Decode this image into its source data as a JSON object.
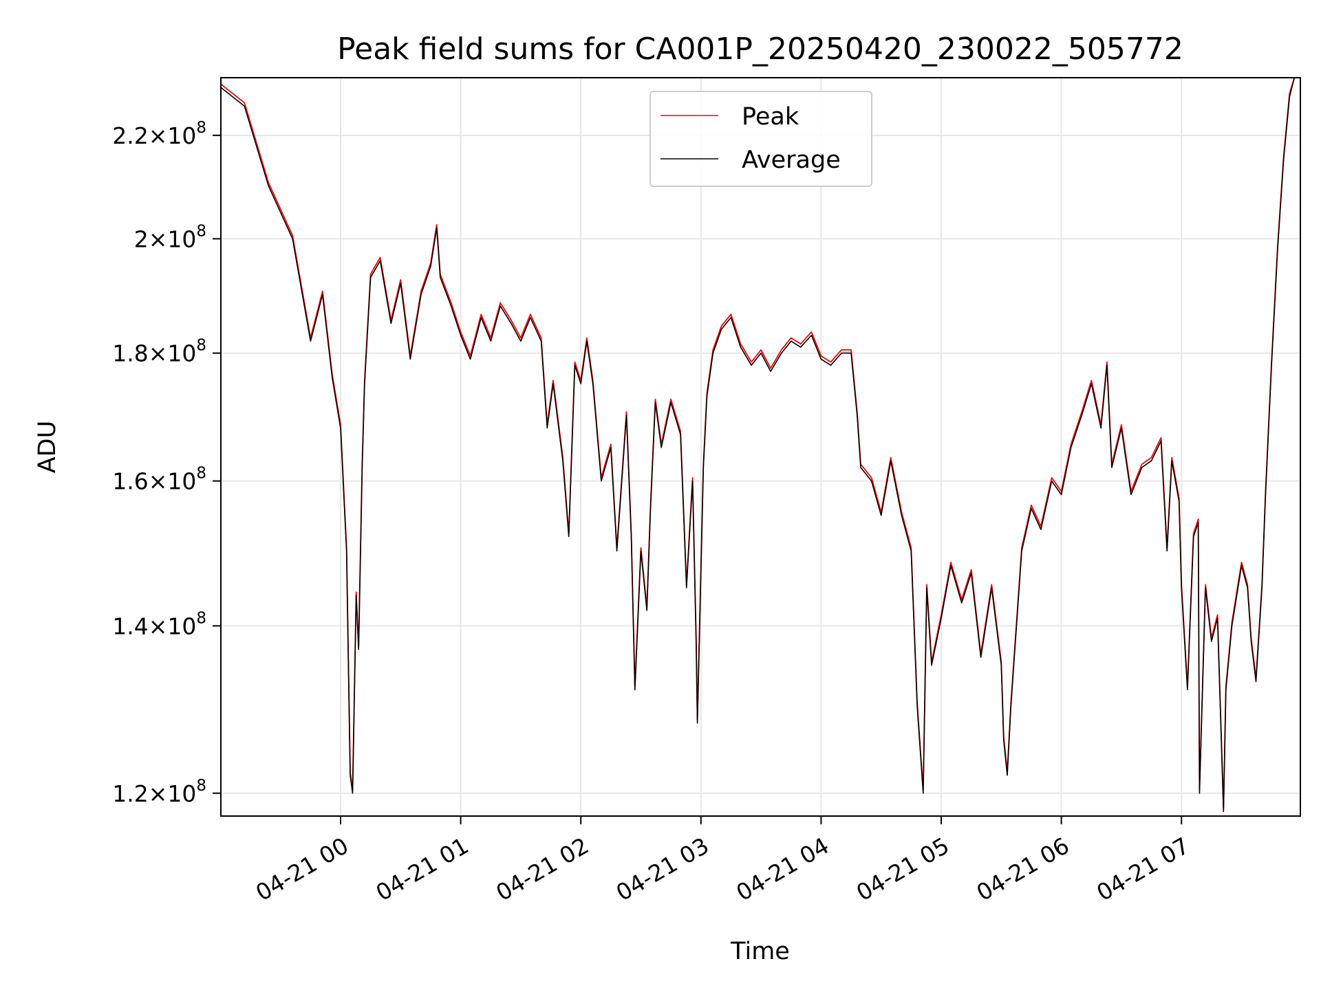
{
  "chart_data": {
    "type": "line",
    "title": "Peak field sums for CA001P_20250420_230022_505772",
    "xlabel": "Time",
    "ylabel": "ADU",
    "yscale": "log",
    "ylim": [
      117500000.0,
      232000000.0
    ],
    "grid": true,
    "legend": {
      "placement": "top-center",
      "entries": [
        "Peak",
        "Average"
      ]
    },
    "x_ticks": [
      "04-21 00",
      "04-21 01",
      "04-21 02",
      "04-21 03",
      "04-21 04",
      "04-21 05",
      "04-21 06",
      "04-21 07"
    ],
    "y_ticks": [
      {
        "value": 120000000.0,
        "mant": "1.2",
        "exp": "8"
      },
      {
        "value": 140000000.0,
        "mant": "1.4",
        "exp": "8"
      },
      {
        "value": 160000000.0,
        "mant": "1.6",
        "exp": "8"
      },
      {
        "value": 180000000.0,
        "mant": "1.8",
        "exp": "8"
      },
      {
        "value": 200000000.0,
        "mant": "2",
        "exp": "8"
      },
      {
        "value": 220000000.0,
        "mant": "2.2",
        "exp": "8"
      }
    ],
    "series": [
      {
        "name": "Peak",
        "color": "#ff0000"
      },
      {
        "name": "Average",
        "color": "#000000"
      }
    ],
    "x_hours_since_tick0": [
      -1.0,
      -0.8,
      -0.6,
      -0.4,
      -0.25,
      -0.15,
      -0.07,
      0.0,
      0.05,
      0.08,
      0.1,
      0.13,
      0.15,
      0.18,
      0.2,
      0.25,
      0.33,
      0.42,
      0.5,
      0.58,
      0.67,
      0.75,
      0.8,
      0.83,
      0.92,
      1.0,
      1.08,
      1.17,
      1.25,
      1.33,
      1.42,
      1.5,
      1.58,
      1.67,
      1.72,
      1.77,
      1.85,
      1.9,
      1.95,
      2.0,
      2.05,
      2.1,
      2.17,
      2.25,
      2.3,
      2.38,
      2.42,
      2.45,
      2.5,
      2.55,
      2.58,
      2.62,
      2.67,
      2.75,
      2.83,
      2.88,
      2.93,
      2.96,
      2.97,
      3.02,
      3.05,
      3.1,
      3.17,
      3.25,
      3.33,
      3.42,
      3.5,
      3.58,
      3.67,
      3.75,
      3.83,
      3.92,
      4.0,
      4.08,
      4.17,
      4.25,
      4.3,
      4.33,
      4.42,
      4.5,
      4.58,
      4.67,
      4.75,
      4.8,
      4.85,
      4.88,
      4.92,
      5.0,
      5.08,
      5.17,
      5.25,
      5.33,
      5.42,
      5.5,
      5.52,
      5.55,
      5.58,
      5.67,
      5.75,
      5.83,
      5.92,
      6.0,
      6.08,
      6.17,
      6.25,
      6.33,
      6.38,
      6.42,
      6.5,
      6.58,
      6.67,
      6.75,
      6.83,
      6.88,
      6.92,
      6.98,
      7.0,
      7.05,
      7.1,
      7.14,
      7.15,
      7.2,
      7.25,
      7.3,
      7.35,
      7.37,
      7.42,
      7.5,
      7.55,
      7.58,
      7.62,
      7.67,
      7.7,
      7.75,
      7.8,
      7.85,
      7.9,
      7.94
    ],
    "average_values": [
      230000000.0,
      226000000.0,
      210000000.0,
      200000000.0,
      182000000.0,
      190000000.0,
      176000000.0,
      168000000.0,
      150000000.0,
      122000000.0,
      120000000.0,
      144000000.0,
      137000000.0,
      162000000.0,
      175000000.0,
      193000000.0,
      196000000.0,
      185000000.0,
      192000000.0,
      179000000.0,
      190000000.0,
      195000000.0,
      202000000.0,
      193000000.0,
      188000000.0,
      183000000.0,
      179000000.0,
      186000000.0,
      182000000.0,
      188000000.0,
      185000000.0,
      182000000.0,
      186000000.0,
      182000000.0,
      168000000.0,
      175000000.0,
      163000000.0,
      152000000.0,
      178000000.0,
      175000000.0,
      182000000.0,
      175000000.0,
      160000000.0,
      165000000.0,
      150000000.0,
      170000000.0,
      152000000.0,
      132000000.0,
      150000000.0,
      142000000.0,
      156000000.0,
      172000000.0,
      165000000.0,
      172000000.0,
      167000000.0,
      145000000.0,
      160000000.0,
      138000000.0,
      128000000.0,
      162000000.0,
      173000000.0,
      180000000.0,
      184000000.0,
      186000000.0,
      181000000.0,
      178000000.0,
      180000000.0,
      177000000.0,
      180000000.0,
      182000000.0,
      181000000.0,
      183000000.0,
      179000000.0,
      178000000.0,
      180000000.0,
      180000000.0,
      170000000.0,
      162000000.0,
      160000000.0,
      155000000.0,
      163000000.0,
      155000000.0,
      150000000.0,
      130000000.0,
      120000000.0,
      145000000.0,
      135000000.0,
      141000000.0,
      148000000.0,
      143000000.0,
      147000000.0,
      136000000.0,
      145000000.0,
      135000000.0,
      126000000.0,
      122000000.0,
      130000000.0,
      150000000.0,
      156000000.0,
      153000000.0,
      160000000.0,
      158000000.0,
      165000000.0,
      170000000.0,
      175000000.0,
      168000000.0,
      178000000.0,
      162000000.0,
      168000000.0,
      158000000.0,
      162000000.0,
      163000000.0,
      166000000.0,
      150000000.0,
      163000000.0,
      157000000.0,
      145000000.0,
      132000000.0,
      152000000.0,
      154000000.0,
      120000000.0,
      145000000.0,
      138000000.0,
      141000000.0,
      118000000.0,
      132000000.0,
      140000000.0,
      148000000.0,
      145000000.0,
      138000000.0,
      133000000.0,
      145000000.0,
      158000000.0,
      178000000.0,
      198000000.0,
      215000000.0,
      228000000.0,
      232000000.0
    ]
  }
}
